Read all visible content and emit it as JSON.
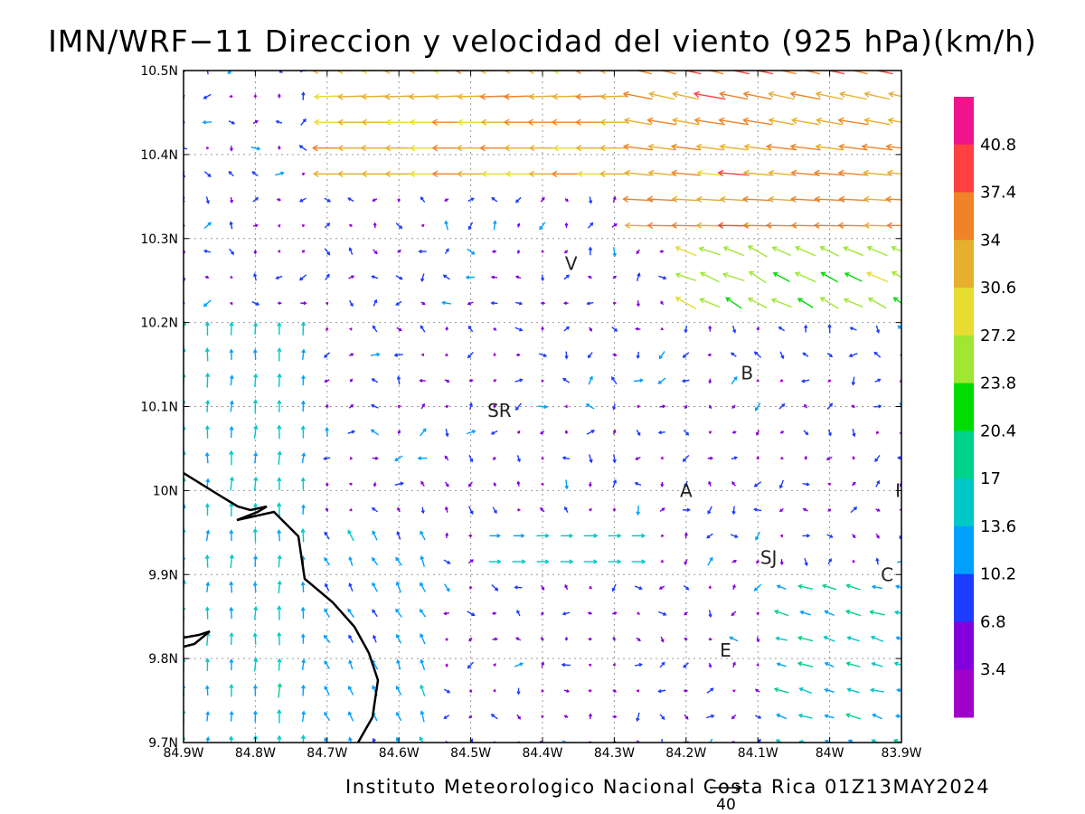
{
  "title": "IMN/WRF−11 Direccion y velocidad del viento (925 hPa)(km/h)",
  "footer": "Instituto Meteorologico Nacional Costa Rica 01Z13MAY2024",
  "reference_vector": {
    "label": "40",
    "value": 40
  },
  "axes": {
    "lon_labels": [
      "84.9W",
      "84.8W",
      "84.7W",
      "84.6W",
      "84.5W",
      "84.4W",
      "84.3W",
      "84.2W",
      "84.1W",
      "84W",
      "83.9W"
    ],
    "lat_labels": [
      "9.7N",
      "9.8N",
      "9.9N",
      "10N",
      "10.1N",
      "10.2N",
      "10.3N",
      "10.4N",
      "10.5N"
    ],
    "lon_range": [
      -84.9,
      -83.9
    ],
    "lat_range": [
      9.7,
      10.5
    ],
    "grid": "dotted"
  },
  "city_labels": [
    {
      "label": "V",
      "lon": -84.36,
      "lat": 10.27
    },
    {
      "label": "B",
      "lon": -84.115,
      "lat": 10.14
    },
    {
      "label": "SR",
      "lon": -84.46,
      "lat": 10.095
    },
    {
      "label": "A",
      "lon": -84.2,
      "lat": 10.0
    },
    {
      "label": "SJ",
      "lon": -84.085,
      "lat": 9.92
    },
    {
      "label": "C",
      "lon": -83.92,
      "lat": 9.9
    },
    {
      "label": "E",
      "lon": -84.145,
      "lat": 9.81
    },
    {
      "label": "I",
      "lon": -83.905,
      "lat": 10.0
    }
  ],
  "colorbar": {
    "levels": [
      "40.8",
      "37.4",
      "34",
      "30.6",
      "27.2",
      "23.8",
      "20.4",
      "17",
      "13.6",
      "10.2",
      "6.8",
      "3.4"
    ],
    "colors": [
      "#f0148c",
      "#ff4040",
      "#f08228",
      "#e6af2d",
      "#e6dc32",
      "#a0e632",
      "#00dc00",
      "#00d28c",
      "#00c8c8",
      "#00a0ff",
      "#1e3cff",
      "#8200dc",
      "#a000c8"
    ]
  },
  "chart_data": {
    "type": "vector_field",
    "title": "IMN/WRF−11 Direccion y velocidad del viento (925 hPa)(km/h)",
    "units": "km/h",
    "level_hpa": 925,
    "model": "IMN/WRF-11",
    "valid_time": "01Z13MAY2024",
    "description_regions": [
      {
        "area": "northeast corner (10.3N-10.5N, 84.3W-83.9W)",
        "direction": "from east/northeast",
        "speed_kmh": [
          30,
          40
        ]
      },
      {
        "area": "north strip (10.38N-10.48N, 84.7W-84.3W)",
        "direction": "from east",
        "speed_kmh": [
          30,
          36
        ]
      },
      {
        "area": "east flank (10.2N-10.35N, 84.2W-83.9W)",
        "direction": "from southeast",
        "speed_kmh": [
          20,
          28
        ]
      },
      {
        "area": "west lowlands (9.7N-10.2N, 84.9W-84.7W)",
        "direction": "from south",
        "speed_kmh": [
          10,
          17
        ]
      },
      {
        "area": "central valley and interior",
        "direction": "variable",
        "speed_kmh": [
          2,
          10
        ]
      }
    ]
  }
}
